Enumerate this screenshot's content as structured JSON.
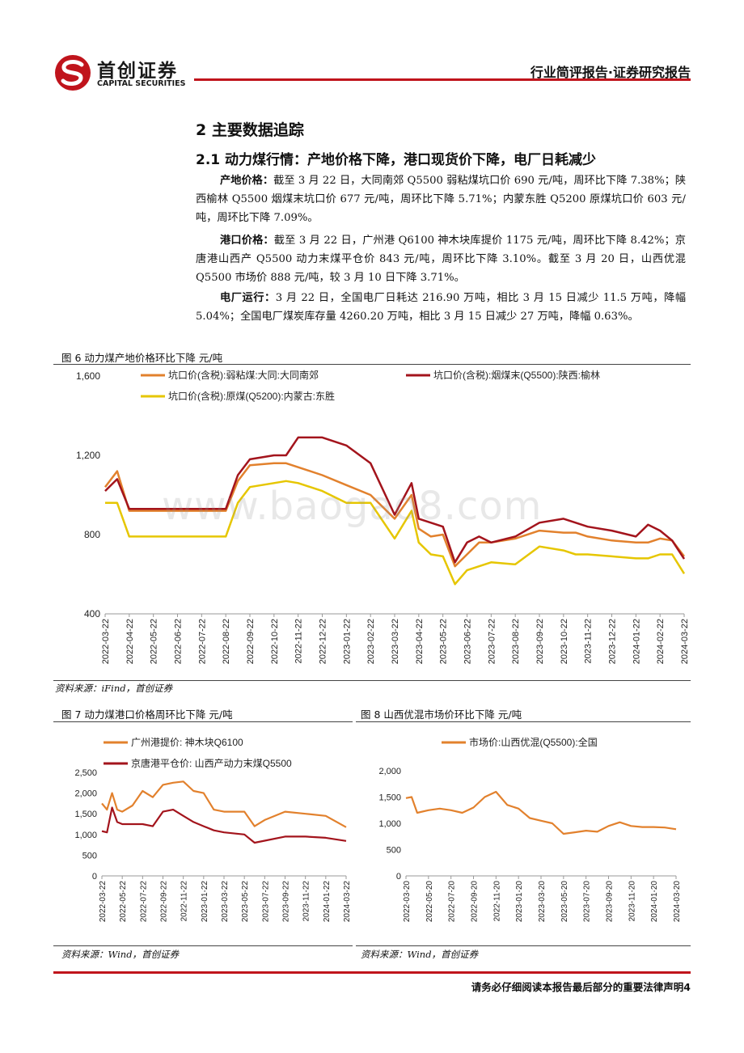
{
  "header": {
    "brand_cn": "首创证券",
    "brand_en": "CAPITAL SECURITIES",
    "report_type": "行业简评报告·证券研究报告"
  },
  "section": {
    "title": "2 主要数据追踪",
    "subtitle": "2.1 动力煤行情：产地价格下降，港口现货价下降，电厂日耗减少"
  },
  "paragraphs": [
    {
      "label": "产地价格：",
      "text": "截至 3 月 22 日，大同南郊 Q5500 弱粘煤坑口价 690 元/吨，周环比下降 7.38%；陕西榆林 Q5500 烟煤末坑口价 677 元/吨，周环比下降 5.71%；内蒙东胜 Q5200 原煤坑口价 603 元/吨，周环比下降 7.09%。"
    },
    {
      "label": "港口价格：",
      "text": "截至 3 月 22 日，广州港 Q6100 神木块库提价 1175 元/吨，周环比下降 8.42%；京唐港山西产 Q5500 动力末煤平仓价 843 元/吨，周环比下降 3.10%。截至 3 月 20 日，山西优混 Q5500 市场价 888 元/吨，较 3 月 10 日下降 3.71%。"
    },
    {
      "label": "电厂运行：",
      "text": "3 月 22 日，全国电厂日耗达 216.90 万吨，相比 3 月 15 日减少 11.5 万吨，降幅 5.04%；全国电厂煤炭库存量 4260.20 万吨，相比 3 月 15 日减少 27 万吨，降幅 0.63%。"
    }
  ],
  "figures": {
    "fig6_title": "图 6 动力煤产地价格环比下降  元/吨",
    "fig7_title": "图 7 动力煤港口价格周环比下降   元/吨",
    "fig8_title": "图 8 山西优混市场价环比下降   元/吨",
    "source_ifind": "资料来源：iFind，首创证券",
    "source_wind": "资料来源：Wind，首创证券"
  },
  "watermark": "www.baogao8.com",
  "footer": {
    "disclaimer": "请务必仔细阅读本报告最后部分的重要法律声明",
    "page_number": "4"
  },
  "colors": {
    "brand_red": "#c0141c",
    "orange": "#e2812d",
    "dark_red": "#a3141c",
    "yellow": "#e6c600"
  },
  "chart_data": [
    {
      "type": "line",
      "ylim": [
        400,
        1600
      ],
      "yticks": [
        "400",
        "800",
        "1,200",
        "1,600"
      ],
      "xticks": [
        "2022-03-22",
        "2022-04-22",
        "2022-05-22",
        "2022-06-22",
        "2022-07-22",
        "2022-08-22",
        "2022-09-22",
        "2022-10-22",
        "2022-11-22",
        "2022-12-22",
        "2023-01-22",
        "2023-02-22",
        "2023-03-22",
        "2023-04-22",
        "2023-05-22",
        "2023-06-22",
        "2023-07-22",
        "2023-08-22",
        "2023-09-22",
        "2023-10-22",
        "2023-11-22",
        "2023-12-22",
        "2024-01-22",
        "2024-02-22",
        "2024-03-22"
      ],
      "x_months": [
        0,
        0.5,
        1,
        2,
        3,
        4,
        5,
        5.5,
        6,
        7,
        7.5,
        8,
        9,
        10,
        11,
        12,
        12.7,
        13,
        13.5,
        14,
        14.5,
        15,
        15.5,
        16,
        17,
        18,
        19,
        19.5,
        20,
        21,
        22,
        22.5,
        23,
        23.5,
        24
      ],
      "legend": "top",
      "series": [
        {
          "name": "坑口价(含税):弱粘煤:大同:大同南郊",
          "color": "#e2812d",
          "values": [
            1040,
            1120,
            920,
            920,
            920,
            920,
            920,
            1070,
            1150,
            1160,
            1160,
            1140,
            1100,
            1050,
            1000,
            880,
            1000,
            830,
            790,
            800,
            640,
            700,
            760,
            760,
            780,
            820,
            810,
            810,
            790,
            770,
            760,
            760,
            780,
            770,
            690
          ]
        },
        {
          "name": "坑口价(含税):烟煤末(Q5500):陕西:榆林",
          "color": "#a3141c",
          "values": [
            1020,
            1080,
            930,
            930,
            930,
            930,
            930,
            1100,
            1180,
            1200,
            1200,
            1290,
            1290,
            1250,
            1160,
            900,
            1060,
            880,
            860,
            840,
            660,
            760,
            790,
            760,
            790,
            860,
            880,
            860,
            840,
            820,
            790,
            850,
            820,
            770,
            677
          ]
        },
        {
          "name": "坑口价(含税):原煤(Q5200):内蒙古:东胜",
          "color": "#e6c600",
          "values": [
            960,
            960,
            790,
            790,
            790,
            790,
            790,
            960,
            1040,
            1060,
            1070,
            1060,
            1020,
            960,
            960,
            780,
            920,
            760,
            700,
            690,
            550,
            620,
            640,
            660,
            650,
            740,
            720,
            700,
            700,
            690,
            680,
            680,
            700,
            700,
            603
          ]
        }
      ]
    },
    {
      "type": "line",
      "ylim": [
        0,
        2500
      ],
      "yticks": [
        "0",
        "500",
        "1,000",
        "1,500",
        "2,000",
        "2,500"
      ],
      "xticks": [
        "2022-03-22",
        "2022-05-22",
        "2022-07-22",
        "2022-09-22",
        "2022-11-22",
        "2023-01-22",
        "2023-03-22",
        "2023-05-22",
        "2023-07-22",
        "2023-09-22",
        "2023-11-22",
        "2024-01-22",
        "2024-03-22"
      ],
      "x_months": [
        0,
        0.5,
        1,
        1.5,
        2,
        3,
        4,
        5,
        6,
        7,
        8,
        9,
        10,
        11,
        12,
        14,
        15,
        16,
        18,
        20,
        22,
        24
      ],
      "legend": "top-left",
      "series": [
        {
          "name": "广州港提价:  神木块Q6100",
          "color": "#e2812d",
          "values": [
            1750,
            1600,
            2000,
            1600,
            1550,
            1700,
            2050,
            1900,
            2200,
            2250,
            2280,
            2050,
            2000,
            1600,
            1550,
            1550,
            1200,
            1350,
            1550,
            1500,
            1450,
            1175
          ]
        },
        {
          "name": "京唐港平仓价:  山西产动力末煤Q5500",
          "color": "#a3141c",
          "values": [
            1080,
            1050,
            1650,
            1300,
            1250,
            1250,
            1250,
            1200,
            1550,
            1600,
            1450,
            1300,
            1200,
            1100,
            1050,
            1000,
            800,
            850,
            950,
            950,
            920,
            843
          ]
        }
      ]
    },
    {
      "type": "line",
      "ylim": [
        0,
        2000
      ],
      "yticks": [
        "0",
        "500",
        "1,000",
        "1,500",
        "2,000"
      ],
      "xticks": [
        "2022-03-20",
        "2022-05-20",
        "2022-07-20",
        "2022-09-20",
        "2022-11-20",
        "2023-01-20",
        "2023-03-20",
        "2023-05-20",
        "2023-07-20",
        "2023-09-20",
        "2023-11-20",
        "2024-01-20",
        "2024-03-20"
      ],
      "x_months": [
        0,
        0.5,
        1,
        2,
        3,
        4,
        5,
        6,
        7,
        8,
        9,
        10,
        11,
        12,
        13,
        14,
        15,
        16,
        17,
        18,
        19,
        20,
        21,
        22,
        23,
        24
      ],
      "legend": "top",
      "series": [
        {
          "name": "市场价:山西优混(Q5500):全国",
          "color": "#e2812d",
          "values": [
            1480,
            1500,
            1200,
            1250,
            1280,
            1250,
            1200,
            1300,
            1500,
            1600,
            1350,
            1280,
            1100,
            1050,
            1000,
            800,
            830,
            860,
            840,
            950,
            1020,
            950,
            930,
            930,
            920,
            888
          ]
        }
      ]
    }
  ]
}
